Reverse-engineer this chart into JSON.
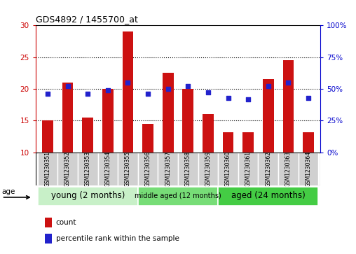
{
  "title": "GDS4892 / 1455700_at",
  "samples": [
    "GSM1230351",
    "GSM1230352",
    "GSM1230353",
    "GSM1230354",
    "GSM1230355",
    "GSM1230356",
    "GSM1230357",
    "GSM1230358",
    "GSM1230359",
    "GSM1230360",
    "GSM1230361",
    "GSM1230362",
    "GSM1230363",
    "GSM1230364"
  ],
  "counts": [
    15.0,
    21.0,
    15.5,
    20.0,
    29.0,
    14.5,
    22.5,
    20.0,
    16.0,
    13.2,
    13.2,
    21.5,
    24.5,
    13.2
  ],
  "percentiles": [
    46,
    52,
    46,
    49,
    55,
    46,
    50,
    52,
    47,
    43,
    42,
    52,
    55,
    43
  ],
  "ylim_left": [
    10,
    30
  ],
  "ylim_right": [
    0,
    100
  ],
  "yticks_left": [
    10,
    15,
    20,
    25,
    30
  ],
  "yticks_right": [
    0,
    25,
    50,
    75,
    100
  ],
  "yticklabels_right": [
    "0%",
    "25%",
    "50%",
    "75%",
    "100%"
  ],
  "bar_color": "#cc1111",
  "dot_color": "#2222cc",
  "bar_bottom": 10,
  "groups": [
    {
      "label": "young (2 months)",
      "start": 0,
      "end": 5
    },
    {
      "label": "middle aged (12 months)",
      "start": 5,
      "end": 9
    },
    {
      "label": "aged (24 months)",
      "start": 9,
      "end": 14
    }
  ],
  "group_colors": [
    "#c8f0c8",
    "#77dd77",
    "#44cc44"
  ],
  "group_fontsizes": [
    8.5,
    7.0,
    8.5
  ],
  "age_label": "age",
  "legend_count_label": "count",
  "legend_pct_label": "percentile rank within the sample",
  "sample_box_color": "#d0d0d0",
  "plot_bg": "#ffffff",
  "left_tick_color": "#cc0000",
  "right_tick_color": "#0000cc"
}
